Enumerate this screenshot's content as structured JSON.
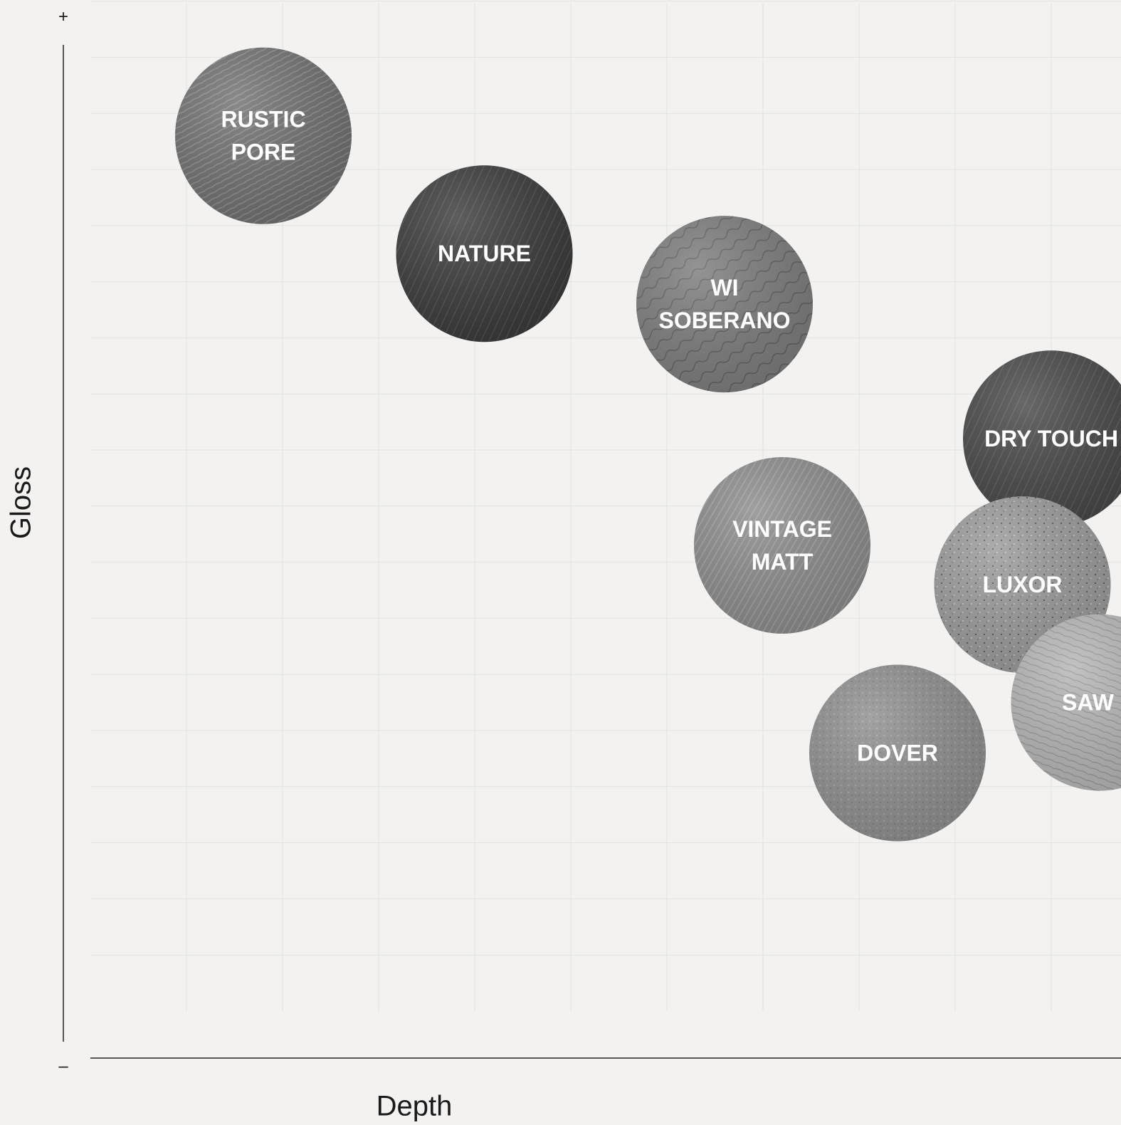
{
  "chart_data": {
    "type": "scatter",
    "xlabel": "Depth",
    "ylabel": "Gloss",
    "y_max_marker": "+",
    "y_min_marker": "–",
    "xlim": [
      0,
      11
    ],
    "ylim": [
      0,
      18
    ],
    "grid": true,
    "legend": "none",
    "points": [
      {
        "label": [
          "RUSTIC",
          "PORE"
        ],
        "x": 1.8,
        "y": 15.6,
        "fill": "#6f6f6f",
        "texture": "wood-fine"
      },
      {
        "label": [
          "NATURE"
        ],
        "x": 4.1,
        "y": 13.5,
        "fill": "#3a3a3a",
        "texture": "wood-dark"
      },
      {
        "label": [
          "WI",
          "SOBERANO"
        ],
        "x": 6.6,
        "y": 12.6,
        "fill": "#7c7c7c",
        "texture": "wood-grain"
      },
      {
        "label": [
          "DRY TOUCH"
        ],
        "x": 10.0,
        "y": 10.2,
        "fill": "#474747",
        "texture": "wood-dark"
      },
      {
        "label": [
          "VINTAGE",
          "MATT"
        ],
        "x": 7.2,
        "y": 8.3,
        "fill": "#8a8a8a",
        "texture": "wood-diagonal"
      },
      {
        "label": [
          "LUXOR"
        ],
        "x": 9.7,
        "y": 7.6,
        "fill": "#9a9a9a",
        "texture": "speckle"
      },
      {
        "label": [
          "SAW C"
        ],
        "x": 10.5,
        "y": 5.5,
        "fill": "#b5b5b5",
        "texture": "wood-light"
      },
      {
        "label": [
          "DOVER"
        ],
        "x": 8.4,
        "y": 4.6,
        "fill": "#8e8e8e",
        "texture": "stucco"
      }
    ]
  }
}
